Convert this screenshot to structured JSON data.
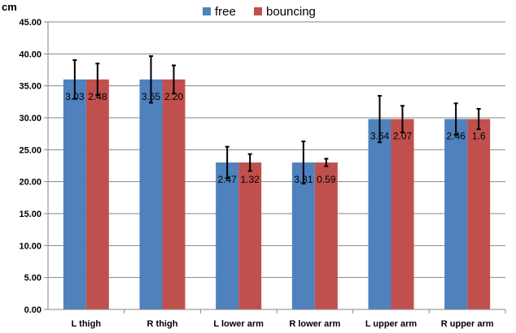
{
  "chart_data": {
    "type": "bar",
    "ylabel": "cm",
    "ylim": [
      0,
      45
    ],
    "ytick_step": 5,
    "ytick_labels": [
      "0.00",
      "5.00",
      "10.00",
      "15.00",
      "20.00",
      "25.00",
      "30.00",
      "35.00",
      "40.00",
      "45.00"
    ],
    "categories": [
      "L thigh",
      "R thigh",
      "L lower arm",
      "R lower arm",
      "L upper arm",
      "R upper arm"
    ],
    "series": [
      {
        "name": "free",
        "color": "#4f81bd",
        "values": [
          36.0,
          36.0,
          23.0,
          23.0,
          29.8,
          29.8
        ],
        "errors": [
          3.03,
          3.65,
          2.47,
          3.31,
          3.64,
          2.46
        ],
        "labels": [
          "3.03",
          "3.65",
          "2.47",
          "3.31",
          "3.64",
          "2.46"
        ]
      },
      {
        "name": "bouncing",
        "color": "#c0504d",
        "values": [
          36.0,
          36.0,
          23.0,
          23.0,
          29.8,
          29.8
        ],
        "errors": [
          2.48,
          2.2,
          1.32,
          0.59,
          2.07,
          1.6
        ],
        "labels": [
          "2.48",
          "2.20",
          "1.32",
          "0.59",
          "2.07",
          "1.6"
        ]
      }
    ],
    "legend_position": "top-center",
    "grid": true,
    "gridline_color": "#868686"
  }
}
